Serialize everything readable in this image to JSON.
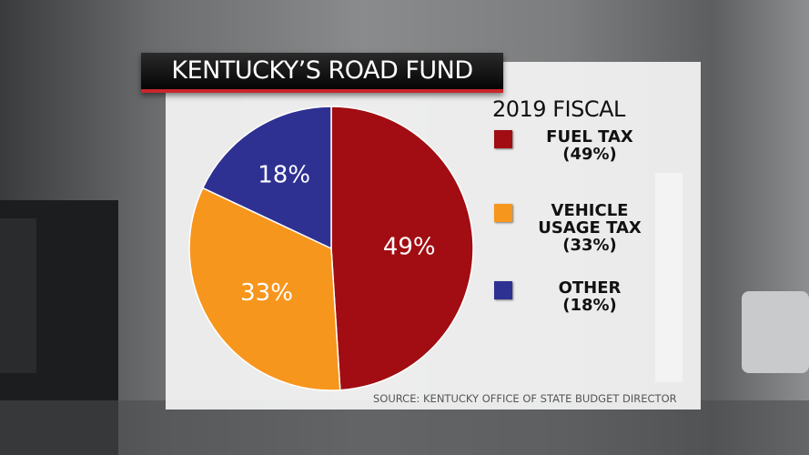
{
  "title": "KENTUCKY’S ROAD FUND",
  "source": "SOURCE: KENTUCKY OFFICE OF STATE BUDGET DIRECTOR",
  "chart_data": {
    "type": "pie",
    "legend_title": "2019 FISCAL",
    "legend_placement": "right",
    "slices": [
      {
        "label_lines": [
          "FUEL TAX",
          "(49%)"
        ],
        "value": 49,
        "data_label": "49%",
        "color": "#a10d12"
      },
      {
        "label_lines": [
          "VEHICLE",
          "USAGE TAX",
          "(33%)"
        ],
        "value": 33,
        "data_label": "33%",
        "color": "#f7961d"
      },
      {
        "label_lines": [
          "OTHER",
          "(18%)"
        ],
        "value": 18,
        "data_label": "18%",
        "color": "#2e3192"
      }
    ]
  }
}
